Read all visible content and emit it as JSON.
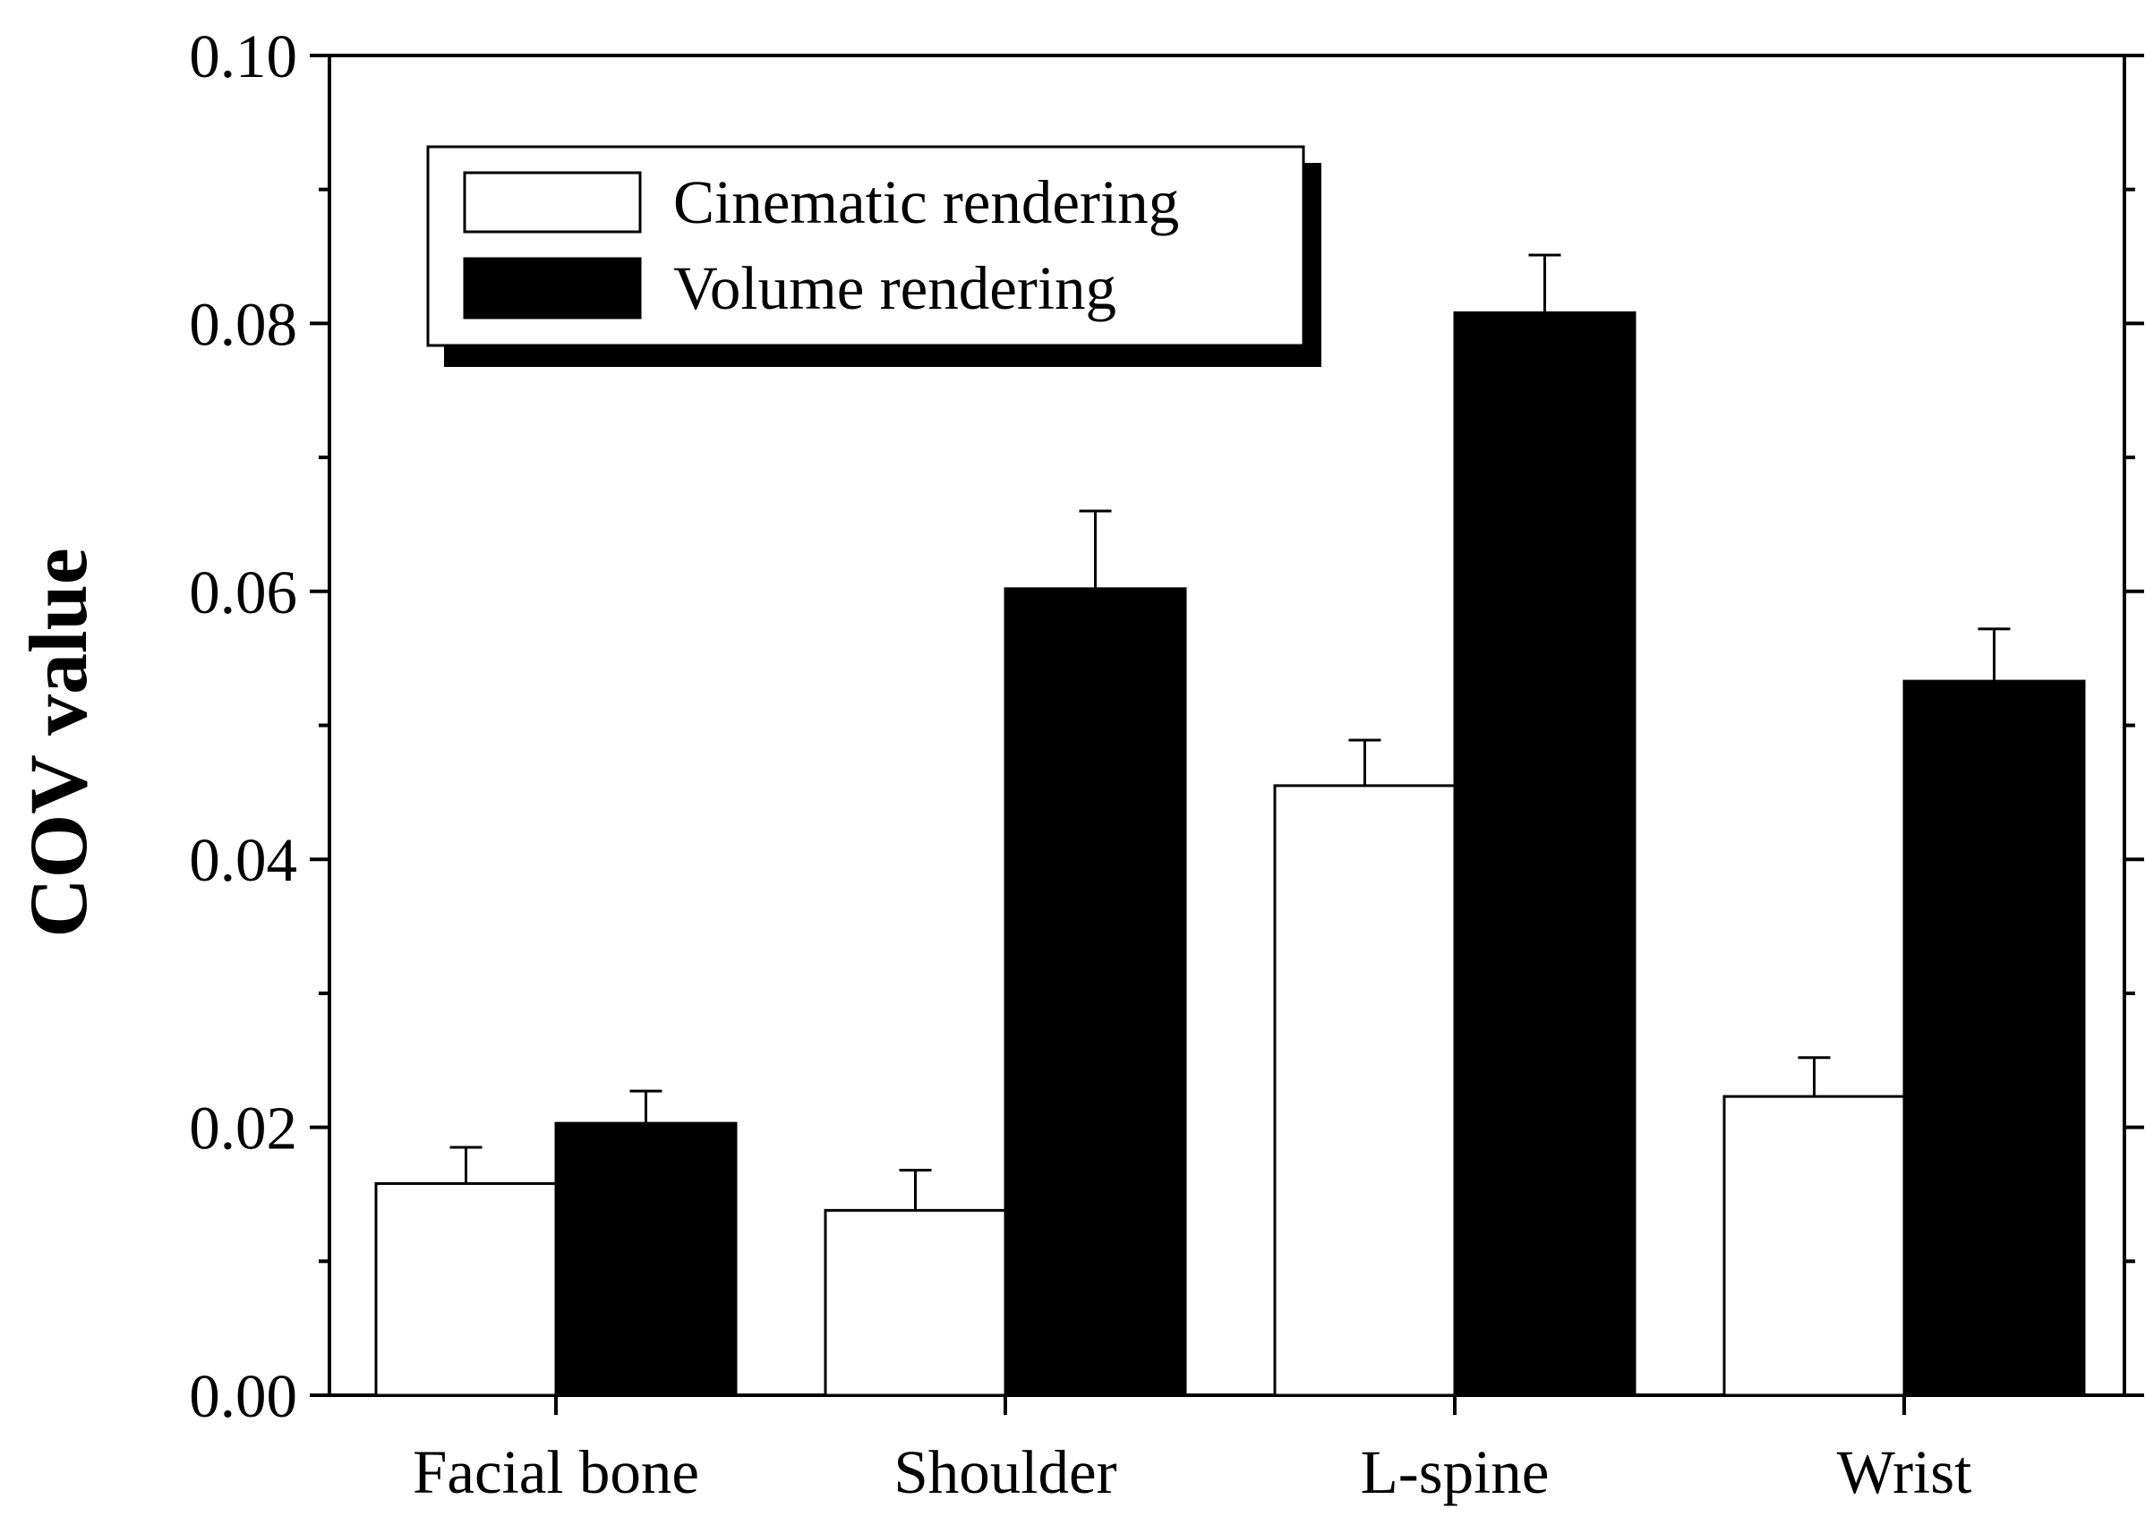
{
  "chart_data": {
    "type": "bar",
    "title": "",
    "xlabel": "",
    "ylabel": "COV value",
    "ylim": [
      0,
      0.1
    ],
    "yticks": [
      "0.00",
      "0.02",
      "0.04",
      "0.06",
      "0.08",
      "0.10"
    ],
    "categories": [
      "Facial bone",
      "Shoulder",
      "L-spine",
      "Wrist"
    ],
    "series": [
      {
        "name": "Cinematic rendering",
        "fill": "#ffffff",
        "values": [
          0.0158,
          0.0138,
          0.0455,
          0.0223
        ],
        "errors": [
          0.0027,
          0.003,
          0.0034,
          0.0029
        ]
      },
      {
        "name": "Volume rendering",
        "fill": "#000000",
        "values": [
          0.0203,
          0.0602,
          0.0808,
          0.0533
        ],
        "errors": [
          0.0024,
          0.0058,
          0.0043,
          0.0039
        ]
      }
    ],
    "legend_position": "top-left",
    "grid": false
  }
}
